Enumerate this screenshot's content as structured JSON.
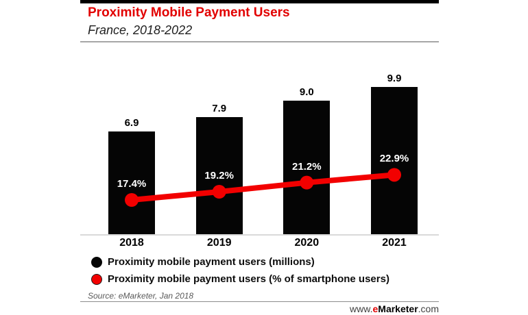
{
  "header": {
    "title": "Proximity Mobile Payment Users",
    "subtitle": "France, 2018-2022"
  },
  "chart_data": {
    "type": "bar",
    "combo": "bar+line",
    "title": "Proximity Mobile Payment Users",
    "subtitle": "France, 2018-2022",
    "categories": [
      "2018",
      "2019",
      "2020",
      "2021"
    ],
    "series": [
      {
        "name": "Proximity mobile payment users (millions)",
        "chart_type": "bar",
        "color": "#050505",
        "values": [
          6.9,
          7.9,
          9.0,
          9.9
        ],
        "labels": [
          "6.9",
          "7.9",
          "9.0",
          "9.9"
        ]
      },
      {
        "name": "Proximity mobile payment users (% of smartphone users)",
        "chart_type": "line",
        "color": "#f20000",
        "values": [
          17.4,
          19.2,
          21.2,
          22.9
        ],
        "labels": [
          "17.4%",
          "19.2%",
          "21.2%",
          "22.9%"
        ]
      }
    ],
    "xlabel": "",
    "ylabel": "",
    "value_axis_visible": false,
    "grid": false,
    "data_labels": true,
    "legend_position": "bottom-left"
  },
  "legend": {
    "items": [
      {
        "label": "Proximity mobile payment users (millions)",
        "color": "#050505",
        "shape": "circle"
      },
      {
        "label": "Proximity mobile payment users (% of smartphone users)",
        "color": "#f20000",
        "shape": "circle"
      }
    ]
  },
  "source": "Source: eMarketer, Jan 2018",
  "footer": {
    "www": "www.",
    "e": "e",
    "marketer": "Marketer",
    "com": ".com"
  },
  "colors": {
    "accent_red": "#e20000",
    "line_red": "#f20000",
    "bar_black": "#050505",
    "rule_gray": "#a6a6a6",
    "baseline_gray": "#d9d9d9"
  }
}
